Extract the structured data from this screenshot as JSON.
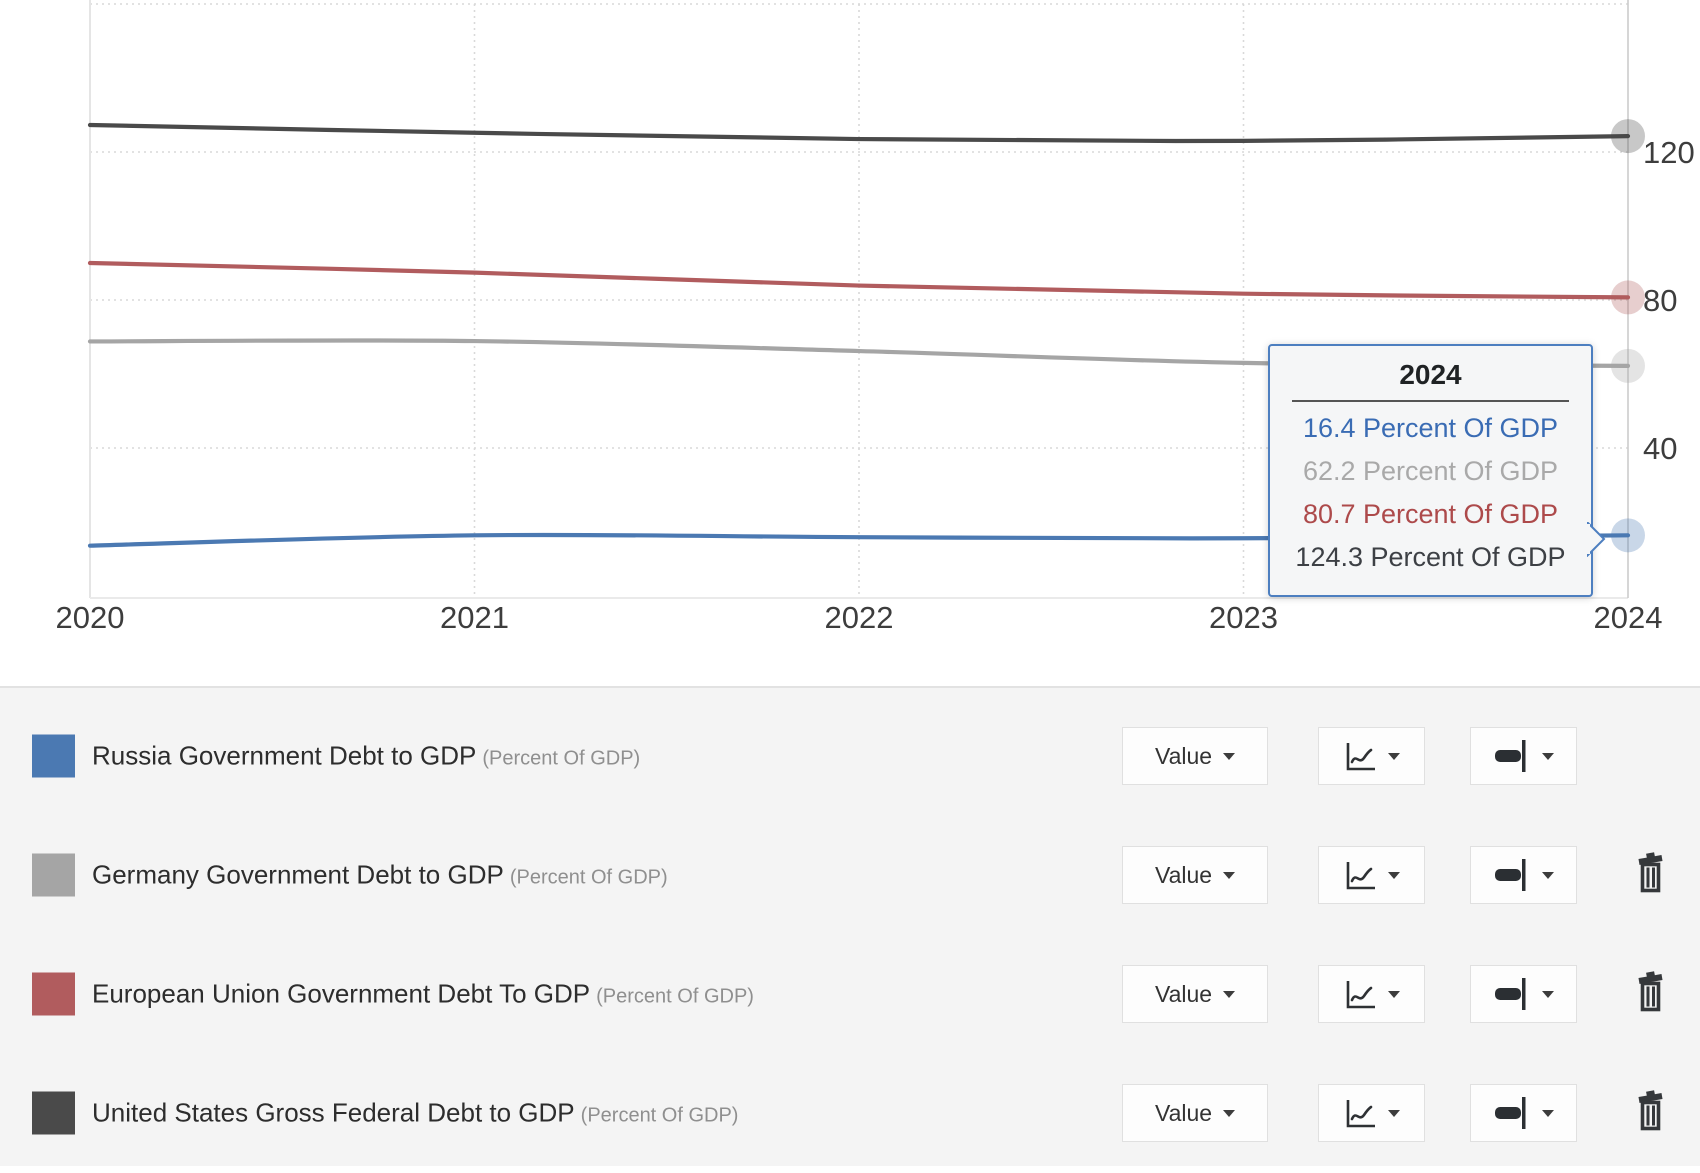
{
  "chart_data": {
    "type": "line",
    "x": [
      2020,
      2021,
      2022,
      2023,
      2024
    ],
    "x_tick_labels": [
      "2020",
      "2021",
      "2022",
      "2023",
      "2024"
    ],
    "y_tick_labels": [
      "120",
      "80",
      "40"
    ],
    "y_ticks": [
      120,
      80,
      40
    ],
    "y_gridlines": [
      160,
      120,
      80,
      40
    ],
    "ylim": [
      0,
      160
    ],
    "xlabel": "",
    "ylabel": "",
    "title": "",
    "grid": true,
    "legend_position": "bottom",
    "highlighted_x": "2024",
    "series": [
      {
        "name": "Russia Government Debt to GDP",
        "unit": "Percent Of GDP",
        "color": "#4b79b2",
        "values": [
          13.6,
          16.4,
          15.9,
          15.6,
          16.4
        ]
      },
      {
        "name": "Germany Government Debt to GDP",
        "unit": "Percent Of GDP",
        "color": "#a5a5a5",
        "values": [
          68.8,
          68.9,
          66.2,
          63.0,
          62.2
        ]
      },
      {
        "name": "European Union Government Debt To GDP",
        "unit": "Percent Of GDP",
        "color": "#b15c5e",
        "values": [
          90.0,
          87.4,
          83.9,
          81.7,
          80.7
        ]
      },
      {
        "name": "United States Gross Federal Debt to GDP",
        "unit": "Percent Of GDP",
        "color": "#4a4a4a",
        "values": [
          127.3,
          125.2,
          123.5,
          123.0,
          124.3
        ]
      }
    ]
  },
  "tooltip": {
    "title": "2024",
    "rows": [
      {
        "text": "16.4 Percent Of GDP",
        "value": 16.4,
        "unit": "Percent Of GDP",
        "color": "#3a6cb4"
      },
      {
        "text": "62.2 Percent Of GDP",
        "value": 62.2,
        "unit": "Percent Of GDP",
        "color": "#a9a9a9"
      },
      {
        "text": "80.7 Percent Of GDP",
        "value": 80.7,
        "unit": "Percent Of GDP",
        "color": "#ad4a4b"
      },
      {
        "text": "124.3 Percent Of GDP",
        "value": 124.3,
        "unit": "Percent Of GDP",
        "color": "#3d4045"
      }
    ]
  },
  "legend": {
    "rows": [
      {
        "label": "Russia Government Debt to GDP",
        "unit_note": "(Percent Of GDP)",
        "swatch_color": "#4b79b2",
        "value_button": "Value",
        "chart_type_icon": "line-chart-icon",
        "line_style_icon": "line-thickness-icon",
        "has_delete": false
      },
      {
        "label": "Germany Government Debt to GDP",
        "unit_note": "(Percent Of GDP)",
        "swatch_color": "#a5a5a5",
        "value_button": "Value",
        "chart_type_icon": "line-chart-icon",
        "line_style_icon": "line-thickness-icon",
        "has_delete": true
      },
      {
        "label": "European Union Government Debt To GDP",
        "unit_note": "(Percent Of GDP)",
        "swatch_color": "#b15c5e",
        "value_button": "Value",
        "chart_type_icon": "line-chart-icon",
        "line_style_icon": "line-thickness-icon",
        "has_delete": true
      },
      {
        "label": "United States Gross Federal Debt to GDP",
        "unit_note": "(Percent Of GDP)",
        "swatch_color": "#4a4a4a",
        "value_button": "Value",
        "chart_type_icon": "line-chart-icon",
        "line_style_icon": "line-thickness-icon",
        "has_delete": true
      }
    ]
  }
}
